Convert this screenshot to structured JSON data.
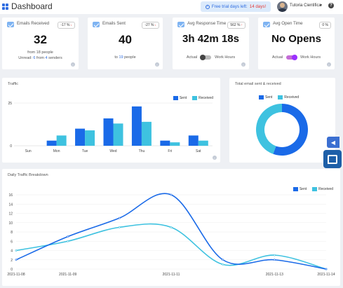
{
  "header": {
    "title": "Dashboard",
    "trial_label": "Free trial days left:",
    "trial_days": "14 days!",
    "user_name": "Tutoria Cientifica"
  },
  "metrics": [
    {
      "label": "Emails Received",
      "badge": "-17 %",
      "value": "32",
      "sub1": "from 18 people",
      "sub2_prefix": "Unread: ",
      "sub2_a": "6",
      "sub2_mid": " from ",
      "sub2_b": "4",
      "sub2_suffix": " senders"
    },
    {
      "label": "Emails Sent",
      "badge": "-27 %",
      "value": "40",
      "sub1_prefix": "to ",
      "sub1_num": "19",
      "sub1_suffix": " people"
    },
    {
      "label": "Avg Response Time",
      "badge": "562 %",
      "value": "3h 42m 18s",
      "toggle_left": "Actual",
      "toggle_right": "Work Hours",
      "toggle_on": false
    },
    {
      "label": "Avg Open Time",
      "badge": "0 %",
      "value": "No Opens",
      "toggle_left": "Actual",
      "toggle_right": "Work Hours",
      "toggle_on": true
    }
  ],
  "colors": {
    "sent": "#1a6ae8",
    "received": "#3ec2e0",
    "accent": "#2f6de1",
    "down_arrow": "#e53935"
  },
  "icons": [
    "grid-icon",
    "info-circle-icon",
    "caret-down-icon",
    "help-icon",
    "mail-icon",
    "arrow-down-icon",
    "arrow-up-icon",
    "info-icon",
    "chat-icon"
  ],
  "chart_data": [
    {
      "type": "bar",
      "title": "Traffic",
      "categories": [
        "Sun",
        "Mon",
        "Tue",
        "Wed",
        "Thu",
        "Fri",
        "Sat"
      ],
      "series": [
        {
          "name": "Sent",
          "values": [
            0,
            3,
            10,
            16,
            23,
            3,
            6
          ]
        },
        {
          "name": "Received",
          "values": [
            0,
            6,
            9,
            13,
            14,
            2,
            3
          ]
        }
      ],
      "ylim": [
        0,
        25
      ],
      "yticks": [
        "0",
        "25"
      ],
      "legend": "top-right"
    },
    {
      "type": "pie",
      "title": "Total email sent & received",
      "series": [
        {
          "name": "Sent",
          "values": [
            40
          ]
        },
        {
          "name": "Received",
          "values": [
            32
          ]
        }
      ],
      "legend": "top"
    },
    {
      "type": "line",
      "title": "Daily Traffic Breakdown",
      "x": [
        "2021-11-08",
        "2021-11-09",
        "2021-11-10",
        "2021-11-11",
        "2021-11-12",
        "2021-11-13",
        "2021-11-14"
      ],
      "xticks": [
        "2021-11-08",
        "2021-11-09",
        "2021-11-11",
        "2021-11-13",
        "2021-11-14"
      ],
      "series": [
        {
          "name": "Sent",
          "values": [
            2,
            7,
            11,
            16,
            2,
            2,
            0
          ]
        },
        {
          "name": "Received",
          "values": [
            4,
            6,
            9,
            9,
            1,
            3,
            0
          ]
        }
      ],
      "ylim": [
        0,
        16
      ],
      "yticks": [
        "0",
        "2",
        "4",
        "6",
        "8",
        "10",
        "12",
        "14",
        "16"
      ],
      "legend": "top-right"
    }
  ]
}
